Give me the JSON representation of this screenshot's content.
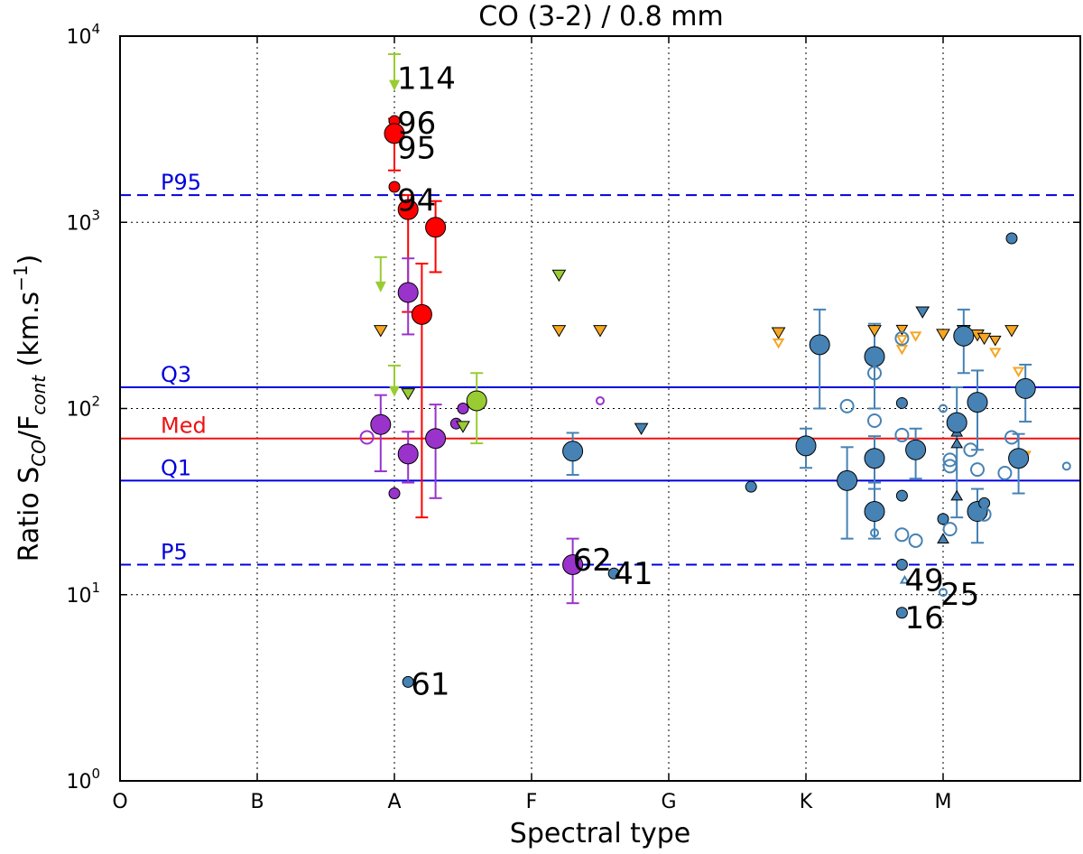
{
  "chart_data": {
    "type": "scatter",
    "title": "CO (3-2) / 0.8 mm",
    "xlabel": "Spectral type",
    "ylabel_parts": {
      "prefix": "Ratio S",
      "sub1": "CO",
      "mid": "/F",
      "sub2": "cont",
      "unit": " (km.s",
      "sup": "−1",
      "end": ")"
    },
    "xlim": [
      0,
      7.0
    ],
    "ylim": [
      1,
      10000
    ],
    "yscale": "log",
    "grid": true,
    "xticks": [
      {
        "v": 0,
        "label": "O"
      },
      {
        "v": 1,
        "label": "B"
      },
      {
        "v": 2,
        "label": "A"
      },
      {
        "v": 3,
        "label": "F"
      },
      {
        "v": 4,
        "label": "G"
      },
      {
        "v": 5,
        "label": "K"
      },
      {
        "v": 6,
        "label": "M"
      }
    ],
    "yticks": [
      {
        "v": 1,
        "base": "10",
        "exp": "0"
      },
      {
        "v": 10,
        "base": "10",
        "exp": "1"
      },
      {
        "v": 100,
        "base": "10",
        "exp": "2"
      },
      {
        "v": 1000,
        "base": "10",
        "exp": "3"
      },
      {
        "v": 10000,
        "base": "10",
        "exp": "4"
      }
    ],
    "reference_lines": [
      {
        "label": "P95",
        "value": 1400,
        "style": "dashed",
        "color": "#0000dd"
      },
      {
        "label": "Q3",
        "value": 130,
        "style": "solid",
        "color": "#0000dd"
      },
      {
        "label": "Med",
        "value": 69,
        "style": "solid",
        "color": "#ee1111"
      },
      {
        "label": "Q1",
        "value": 41,
        "style": "solid",
        "color": "#0000dd"
      },
      {
        "label": "P5",
        "value": 14.5,
        "style": "dashed",
        "color": "#0000dd"
      }
    ],
    "colors": {
      "red": "#ff0000",
      "purple": "#9933cc",
      "green": "#99cc33",
      "blue": "#4682b4",
      "orange": "#f5a623"
    },
    "annotations": [
      {
        "text": "114",
        "x": 2.02,
        "y": 5200
      },
      {
        "text": "96",
        "x": 2.02,
        "y": 3000
      },
      {
        "text": "95",
        "x": 2.02,
        "y": 2200
      },
      {
        "text": "94",
        "x": 2.02,
        "y": 1150
      },
      {
        "text": "62",
        "x": 3.3,
        "y": 13.5
      },
      {
        "text": "41",
        "x": 3.6,
        "y": 11.4
      },
      {
        "text": "49",
        "x": 5.72,
        "y": 10.5
      },
      {
        "text": "25",
        "x": 5.98,
        "y": 8.8
      },
      {
        "text": "16",
        "x": 5.72,
        "y": 6.6
      },
      {
        "text": "61",
        "x": 2.12,
        "y": 2.9
      }
    ],
    "series": [
      {
        "name": "red filled",
        "marker": "circle",
        "fill": "#ff0000",
        "points": [
          {
            "x": 2.0,
            "y": 3500,
            "s": 6
          },
          {
            "x": 2.0,
            "y": 3000,
            "s": 11,
            "lo": 1900,
            "hi": 3600
          },
          {
            "x": 2.0,
            "y": 1550,
            "s": 6
          },
          {
            "x": 2.1,
            "y": 1170,
            "s": 11,
            "lo": 330,
            "hi": 1400
          },
          {
            "x": 2.3,
            "y": 940,
            "s": 11,
            "lo": 540,
            "hi": 1300
          },
          {
            "x": 2.2,
            "y": 320,
            "s": 11,
            "lo": 26,
            "hi": 600
          }
        ]
      },
      {
        "name": "purple filled",
        "marker": "circle",
        "fill": "#9933cc",
        "points": [
          {
            "x": 2.1,
            "y": 420,
            "s": 11,
            "lo": 250,
            "hi": 640
          },
          {
            "x": 1.9,
            "y": 82,
            "s": 11,
            "lo": 46,
            "hi": 118
          },
          {
            "x": 2.1,
            "y": 57,
            "s": 11,
            "lo": 40,
            "hi": 75
          },
          {
            "x": 2.3,
            "y": 69,
            "s": 11,
            "lo": 33,
            "hi": 105
          },
          {
            "x": 2.45,
            "y": 83,
            "s": 6
          },
          {
            "x": 2.5,
            "y": 100,
            "s": 6
          },
          {
            "x": 2.0,
            "y": 35,
            "s": 6
          },
          {
            "x": 3.3,
            "y": 14.5,
            "s": 11,
            "lo": 9,
            "hi": 20
          }
        ]
      },
      {
        "name": "purple open",
        "marker": "circle-open",
        "fill": "#9933cc",
        "points": [
          {
            "x": 1.8,
            "y": 70,
            "s": 7
          },
          {
            "x": 3.5,
            "y": 110,
            "s": 4
          }
        ]
      },
      {
        "name": "green upper limits",
        "marker": "arrow-down",
        "fill": "#99cc33",
        "points": [
          {
            "x": 2.0,
            "y": 8000,
            "lo": 5200
          },
          {
            "x": 1.9,
            "y": 650,
            "lo": 430
          },
          {
            "x": 2.0,
            "y": 170,
            "lo": 118
          }
        ]
      },
      {
        "name": "green filled",
        "marker": "circle",
        "fill": "#99cc33",
        "points": [
          {
            "x": 2.6,
            "y": 110,
            "s": 11,
            "lo": 65,
            "hi": 155
          }
        ]
      },
      {
        "name": "green triangles down",
        "marker": "triangle-down",
        "fill": "#99cc33",
        "points": [
          {
            "x": 2.1,
            "y": 120,
            "s": 7
          },
          {
            "x": 2.5,
            "y": 80,
            "s": 7
          },
          {
            "x": 3.2,
            "y": 520,
            "s": 7
          }
        ]
      },
      {
        "name": "orange triangles down",
        "marker": "triangle-down",
        "fill": "#f5a623",
        "points": [
          {
            "x": 1.9,
            "y": 262,
            "s": 7
          },
          {
            "x": 3.2,
            "y": 262,
            "s": 7
          },
          {
            "x": 3.5,
            "y": 262,
            "s": 7
          },
          {
            "x": 4.8,
            "y": 255,
            "s": 7
          },
          {
            "x": 4.8,
            "y": 225,
            "s": 5,
            "open": true
          },
          {
            "x": 5.5,
            "y": 262,
            "s": 7
          },
          {
            "x": 5.7,
            "y": 265,
            "s": 6
          },
          {
            "x": 5.7,
            "y": 235,
            "s": 5,
            "open": true
          },
          {
            "x": 5.7,
            "y": 208,
            "s": 5,
            "open": true
          },
          {
            "x": 5.8,
            "y": 245,
            "s": 5,
            "open": true
          },
          {
            "x": 6.0,
            "y": 250,
            "s": 7
          },
          {
            "x": 6.15,
            "y": 262,
            "s": 7
          },
          {
            "x": 6.25,
            "y": 248,
            "s": 7
          },
          {
            "x": 6.3,
            "y": 238,
            "s": 7
          },
          {
            "x": 6.38,
            "y": 232,
            "s": 6
          },
          {
            "x": 6.38,
            "y": 200,
            "s": 5,
            "open": true
          },
          {
            "x": 6.5,
            "y": 262,
            "s": 7
          },
          {
            "x": 6.55,
            "y": 158,
            "s": 5,
            "open": true
          },
          {
            "x": 6.6,
            "y": 56,
            "s": 5,
            "open": true
          }
        ]
      },
      {
        "name": "dark blue triangles down",
        "marker": "triangle-down",
        "fill": "#4682b4",
        "points": [
          {
            "x": 3.8,
            "y": 78,
            "s": 7
          },
          {
            "x": 5.85,
            "y": 330,
            "s": 7
          },
          {
            "x": 6.15,
            "y": 262,
            "s": 7
          }
        ]
      },
      {
        "name": "blue triangles up",
        "marker": "triangle-up",
        "fill": "#4682b4",
        "points": [
          {
            "x": 6.1,
            "y": 75,
            "s": 6
          },
          {
            "x": 6.1,
            "y": 65,
            "s": 6
          },
          {
            "x": 6.1,
            "y": 34,
            "s": 6
          },
          {
            "x": 6.0,
            "y": 20,
            "s": 6
          },
          {
            "x": 5.72,
            "y": 12,
            "s": 4,
            "open": true
          }
        ]
      },
      {
        "name": "blue filled",
        "marker": "circle",
        "fill": "#4682b4",
        "points": [
          {
            "x": 3.3,
            "y": 59,
            "s": 11,
            "lo": 44,
            "hi": 74
          },
          {
            "x": 3.6,
            "y": 13,
            "s": 6
          },
          {
            "x": 4.6,
            "y": 38,
            "s": 6
          },
          {
            "x": 5.0,
            "y": 63,
            "s": 11,
            "lo": 48,
            "hi": 78
          },
          {
            "x": 5.1,
            "y": 220,
            "s": 11,
            "lo": 100,
            "hi": 340
          },
          {
            "x": 5.3,
            "y": 41,
            "s": 11,
            "lo": 20,
            "hi": 62
          },
          {
            "x": 5.5,
            "y": 190,
            "s": 11,
            "lo": 100,
            "hi": 285
          },
          {
            "x": 5.5,
            "y": 54,
            "s": 11,
            "lo": 37,
            "hi": 71
          },
          {
            "x": 5.5,
            "y": 28,
            "s": 11,
            "lo": 20,
            "hi": 40
          },
          {
            "x": 5.7,
            "y": 107,
            "s": 6
          },
          {
            "x": 5.7,
            "y": 34,
            "s": 6
          },
          {
            "x": 5.7,
            "y": 14.5,
            "s": 6
          },
          {
            "x": 5.7,
            "y": 8,
            "s": 6
          },
          {
            "x": 5.8,
            "y": 60,
            "s": 11,
            "lo": 42,
            "hi": 78
          },
          {
            "x": 6.1,
            "y": 84,
            "s": 11,
            "lo": 26,
            "hi": 130
          },
          {
            "x": 6.15,
            "y": 245,
            "s": 11,
            "lo": 155,
            "hi": 340
          },
          {
            "x": 6.25,
            "y": 108,
            "s": 11,
            "lo": 60,
            "hi": 160
          },
          {
            "x": 6.25,
            "y": 28,
            "s": 11,
            "lo": 19,
            "hi": 37
          },
          {
            "x": 6.3,
            "y": 31,
            "s": 6
          },
          {
            "x": 6.5,
            "y": 820,
            "s": 6
          },
          {
            "x": 6.55,
            "y": 54,
            "s": 11,
            "lo": 35,
            "hi": 73
          },
          {
            "x": 6.6,
            "y": 128,
            "s": 11,
            "lo": 85,
            "hi": 172
          },
          {
            "x": 2.1,
            "y": 3.4,
            "s": 6
          },
          {
            "x": 6.0,
            "y": 25.5,
            "s": 6
          }
        ]
      },
      {
        "name": "blue open",
        "marker": "circle-open",
        "fill": "#4682b4",
        "points": [
          {
            "x": 5.3,
            "y": 103,
            "s": 7
          },
          {
            "x": 5.5,
            "y": 155,
            "s": 7
          },
          {
            "x": 5.5,
            "y": 86,
            "s": 7
          },
          {
            "x": 5.5,
            "y": 21.5,
            "s": 4
          },
          {
            "x": 5.7,
            "y": 238,
            "s": 7
          },
          {
            "x": 5.7,
            "y": 72,
            "s": 7
          },
          {
            "x": 5.7,
            "y": 21,
            "s": 7
          },
          {
            "x": 5.8,
            "y": 19.5,
            "s": 7
          },
          {
            "x": 6.0,
            "y": 100,
            "s": 4
          },
          {
            "x": 6.05,
            "y": 53,
            "s": 7
          },
          {
            "x": 6.05,
            "y": 49,
            "s": 7
          },
          {
            "x": 6.05,
            "y": 22.5,
            "s": 7
          },
          {
            "x": 6.2,
            "y": 60,
            "s": 7
          },
          {
            "x": 6.25,
            "y": 47,
            "s": 7
          },
          {
            "x": 6.3,
            "y": 27,
            "s": 7
          },
          {
            "x": 6.45,
            "y": 45,
            "s": 7
          },
          {
            "x": 6.5,
            "y": 70,
            "s": 7
          },
          {
            "x": 6.9,
            "y": 49,
            "s": 4
          },
          {
            "x": 6.0,
            "y": 10.3,
            "s": 4
          }
        ]
      }
    ]
  }
}
